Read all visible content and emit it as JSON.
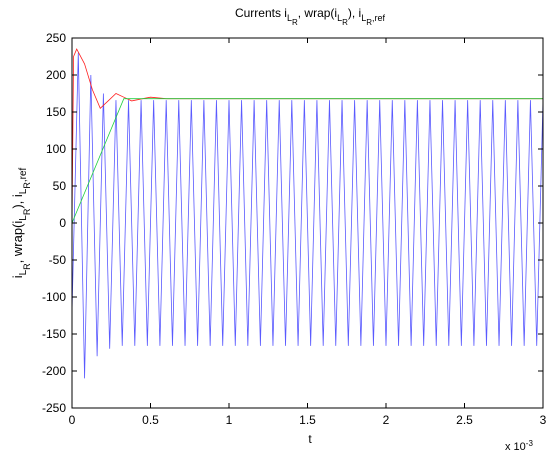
{
  "chart_data": {
    "type": "line",
    "title": [
      "Currents i",
      "L",
      "R",
      ", wrap(i",
      "L",
      "R",
      "), i",
      "L",
      "R",
      ",ref"
    ],
    "ylabel": [
      "i",
      "L",
      "R",
      ", wrap(i",
      "L",
      "R",
      "), i",
      "L",
      "R",
      ",ref"
    ],
    "xlabel": "t",
    "x_multiplier": [
      "x 10",
      "-3"
    ],
    "xlim": [
      0,
      3
    ],
    "ylim": [
      -250,
      250
    ],
    "xticks": [
      0,
      0.5,
      1,
      1.5,
      2,
      2.5,
      3
    ],
    "yticks": [
      -250,
      -200,
      -150,
      -100,
      -50,
      0,
      50,
      100,
      150,
      200,
      250
    ],
    "series": [
      {
        "color": "#5a5aff",
        "x": [
          0,
          0.04,
          0.08,
          0.12,
          0.16,
          0.2,
          0.24,
          0.28,
          0.32,
          0.36,
          0.4,
          0.44,
          0.48,
          0.52,
          0.56,
          0.6,
          0.64,
          0.68,
          0.72,
          0.76,
          0.8,
          0.84,
          0.88,
          0.92,
          0.96,
          1,
          1.04,
          1.08,
          1.12,
          1.16,
          1.2,
          1.24,
          1.28,
          1.32,
          1.36,
          1.4,
          1.44,
          1.48,
          1.52,
          1.56,
          1.6,
          1.64,
          1.68,
          1.72,
          1.76,
          1.8,
          1.84,
          1.88,
          1.92,
          1.96,
          2,
          2.04,
          2.08,
          2.12,
          2.16,
          2.2,
          2.24,
          2.28,
          2.32,
          2.36,
          2.4,
          2.44,
          2.48,
          2.52,
          2.56,
          2.6,
          2.64,
          2.68,
          2.72,
          2.76,
          2.8,
          2.84,
          2.88,
          2.92,
          2.96,
          3
        ],
        "values": [
          -120,
          230,
          -210,
          200,
          -180,
          175,
          -170,
          166,
          -166,
          166,
          -166,
          166,
          -166,
          166,
          -166,
          166,
          -166,
          166,
          -166,
          166,
          -166,
          166,
          -166,
          166,
          -166,
          166,
          -166,
          166,
          -166,
          166,
          -166,
          166,
          -166,
          166,
          -166,
          166,
          -166,
          166,
          -166,
          166,
          -166,
          166,
          -166,
          166,
          -166,
          166,
          -166,
          166,
          -166,
          166,
          -166,
          166,
          -166,
          166,
          -166,
          166,
          -166,
          166,
          -166,
          166,
          -166,
          166,
          -166,
          166,
          -166,
          166,
          -166,
          166,
          -166,
          166,
          -166,
          166,
          -166,
          166,
          -166,
          166
        ]
      },
      {
        "color": "#ff2020",
        "x": [
          0,
          0.01,
          0.03,
          0.08,
          0.13,
          0.18,
          0.23,
          0.28,
          0.33,
          0.38,
          0.45,
          0.5,
          0.6,
          3
        ],
        "values": [
          0,
          225,
          235,
          215,
          180,
          155,
          165,
          175,
          170,
          165,
          168,
          170,
          168,
          168
        ]
      },
      {
        "color": "#20d040",
        "x": [
          0,
          0.33,
          3
        ],
        "values": [
          0,
          168,
          168
        ]
      }
    ]
  }
}
